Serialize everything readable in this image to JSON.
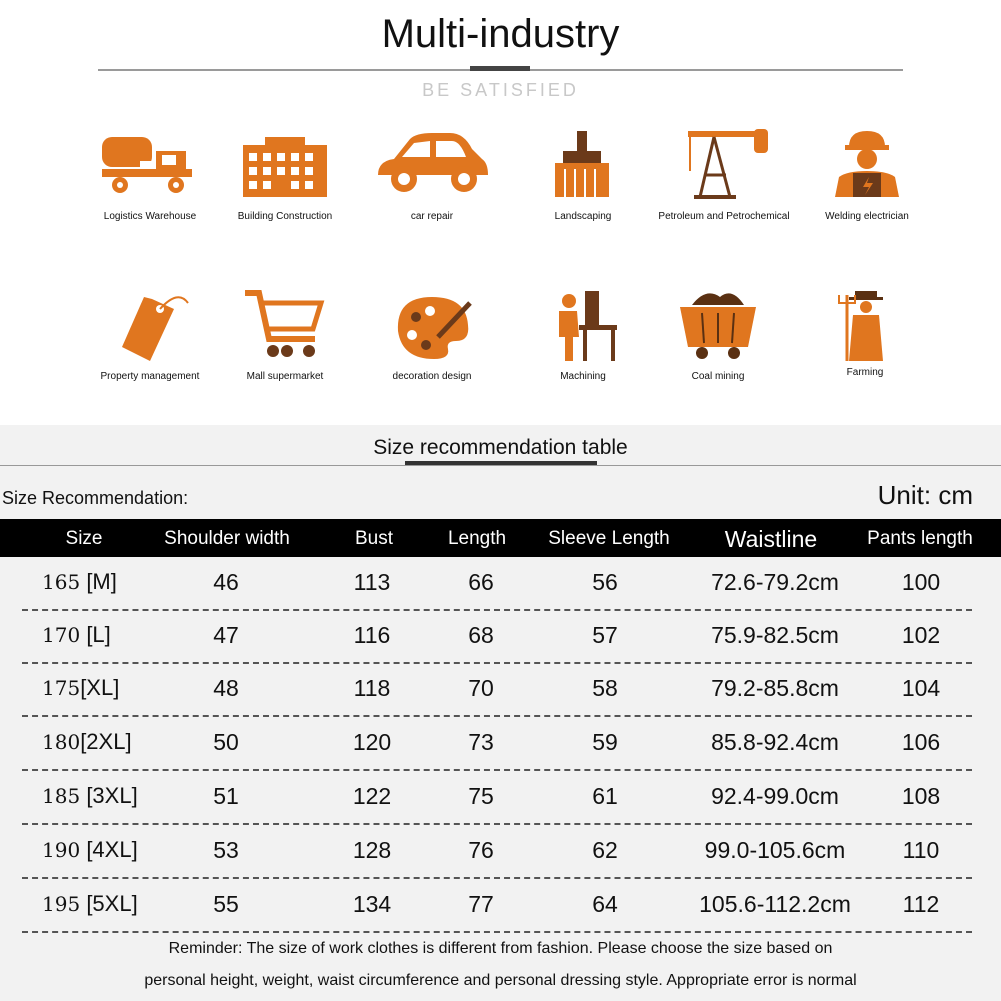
{
  "header": {
    "title": "Multi-industry",
    "subtitle": "BE SATISFIED"
  },
  "industries": [
    {
      "label": "Logistics Warehouse",
      "icon": "truck-icon"
    },
    {
      "label": "Building Construction",
      "icon": "building-icon"
    },
    {
      "label": "car repair",
      "icon": "car-icon"
    },
    {
      "label": "Landscaping",
      "icon": "brush-icon"
    },
    {
      "label": "Petroleum and Petrochemical",
      "icon": "oil-pump-icon"
    },
    {
      "label": "Welding electrician",
      "icon": "worker-icon"
    },
    {
      "label": "Property management",
      "icon": "tag-icon"
    },
    {
      "label": "Mall supermarket",
      "icon": "cart-icon"
    },
    {
      "label": "decoration design",
      "icon": "palette-icon"
    },
    {
      "label": "Machining",
      "icon": "machinist-icon"
    },
    {
      "label": "Coal mining",
      "icon": "mine-cart-icon"
    },
    {
      "label": "Farming",
      "icon": "farmer-icon"
    }
  ],
  "icon_color": "#e0761f",
  "size_table": {
    "title": "Size recommendation table",
    "label": "Size Recommendation:",
    "unit": "Unit: cm",
    "headers": [
      "Size",
      "Shoulder width",
      "Bust",
      "Length",
      "Sleeve Length",
      "Waistline",
      "Pants length"
    ],
    "rows": [
      {
        "height": "165",
        "size": "[M]",
        "shoulder": "46",
        "bust": "113",
        "length": "66",
        "sleeve": "56",
        "waist": "72.6-79.2cm",
        "pants": "100"
      },
      {
        "height": "170",
        "size": "[L]",
        "shoulder": "47",
        "bust": "116",
        "length": "68",
        "sleeve": "57",
        "waist": "75.9-82.5cm",
        "pants": "102"
      },
      {
        "height": "175",
        "size": "[XL]",
        "shoulder": "48",
        "bust": "118",
        "length": "70",
        "sleeve": "58",
        "waist": "79.2-85.8cm",
        "pants": "104"
      },
      {
        "height": "180",
        "size": "[2XL]",
        "shoulder": "50",
        "bust": "120",
        "length": "73",
        "sleeve": "59",
        "waist": "85.8-92.4cm",
        "pants": "106"
      },
      {
        "height": "185",
        "size": "[3XL]",
        "shoulder": "51",
        "bust": "122",
        "length": "75",
        "sleeve": "61",
        "waist": "92.4-99.0cm",
        "pants": "108"
      },
      {
        "height": "190",
        "size": "[4XL]",
        "shoulder": "53",
        "bust": "128",
        "length": "76",
        "sleeve": "62",
        "waist": "99.0-105.6cm",
        "pants": "110"
      },
      {
        "height": "195",
        "size": "[5XL]",
        "shoulder": "55",
        "bust": "134",
        "length": "77",
        "sleeve": "64",
        "waist": "105.6-112.2cm",
        "pants": "112"
      }
    ]
  },
  "reminder": {
    "line1": "Reminder: The size of work clothes is different from fashion. Please choose the size based on",
    "line2": "personal height, weight, waist circumference and personal dressing style. Appropriate error is normal"
  }
}
